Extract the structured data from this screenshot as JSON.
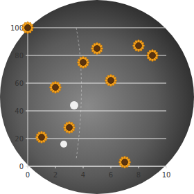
{
  "chart_data": {
    "type": "scatter",
    "x": [
      0,
      4,
      5,
      8,
      9,
      6,
      2,
      3,
      1,
      7
    ],
    "values": [
      100,
      75,
      85,
      87,
      80,
      62,
      57,
      28,
      21,
      3
    ],
    "color": "#f4a11d",
    "marker": "sunflower",
    "xlim": [
      0,
      10
    ],
    "xticks": [
      0,
      2,
      4,
      6,
      8,
      10
    ],
    "ylim": [
      0,
      100
    ],
    "yticks": [
      0,
      20,
      40,
      60,
      80,
      100
    ],
    "grid": true
  }
}
